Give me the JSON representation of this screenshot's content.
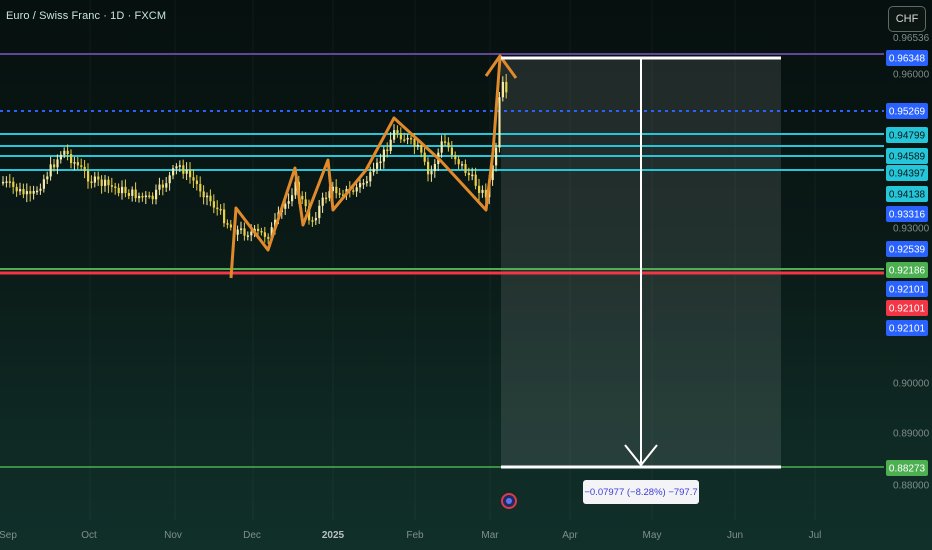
{
  "header": {
    "symbol_title": "Euro / Swiss Franc · 1D · FXCM",
    "currency_button": "CHF"
  },
  "price_axis": {
    "top_partial": "0.96536",
    "plain_ticks": [
      "0.96000",
      "0.93000",
      "0.90000",
      "0.89000",
      "0.88000"
    ],
    "tags": [
      {
        "value": "0.96348",
        "bg": "#2962ff",
        "fg": "#ffffff",
        "name": "price-tag-purple-line"
      },
      {
        "value": "0.95269",
        "bg": "#2962ff",
        "fg": "#ffffff",
        "name": "price-tag-dotted-line"
      },
      {
        "value": "0.94799",
        "bg": "#26c6da",
        "fg": "#0b1614",
        "name": "price-tag-cyan-1"
      },
      {
        "value": "0.94589",
        "bg": "#26c6da",
        "fg": "#0b1614",
        "name": "price-tag-cyan-2"
      },
      {
        "value": "0.94397",
        "bg": "#26c6da",
        "fg": "#0b1614",
        "name": "price-tag-cyan-3"
      },
      {
        "value": "0.94138",
        "bg": "#26c6da",
        "fg": "#0b1614",
        "name": "price-tag-cyan-4"
      },
      {
        "value": "0.93316",
        "bg": "#2962ff",
        "fg": "#ffffff",
        "name": "price-tag-low"
      },
      {
        "value": "0.92539",
        "bg": "#2962ff",
        "fg": "#ffffff",
        "name": "price-tag-2"
      },
      {
        "value": "0.92186",
        "bg": "#4caf50",
        "fg": "#ffffff",
        "name": "price-tag-green-line"
      },
      {
        "value": "0.92101",
        "bg": "#2962ff",
        "fg": "#ffffff",
        "name": "price-tag-3"
      },
      {
        "value": "0.92101",
        "bg": "#f23645",
        "fg": "#ffffff",
        "name": "price-tag-red-line"
      },
      {
        "value": "0.92101",
        "bg": "#2962ff",
        "fg": "#ffffff",
        "name": "price-tag-4"
      },
      {
        "value": "0.88273",
        "bg": "#4caf50",
        "fg": "#ffffff",
        "name": "price-tag-target"
      }
    ]
  },
  "time_axis": {
    "labels": [
      "Sep",
      "Oct",
      "Nov",
      "Dec",
      "2025",
      "Feb",
      "Mar",
      "Apr",
      "May",
      "Jun",
      "Jul"
    ],
    "bold_label": "2025"
  },
  "measure": {
    "label": "−0.07977 (−8.28%) −797.7"
  },
  "colors": {
    "bull_candle": "#f5e9a8",
    "bear_candle": "#e8d04a",
    "pattern": "#e08a2c",
    "hline_purple": "#7e57c2",
    "hline_cyan": "#26c6da",
    "hline_red": "#f23645",
    "hline_green": "#4caf50",
    "dotted": "#2962ff",
    "measure_arrow": "#ffffff"
  }
}
